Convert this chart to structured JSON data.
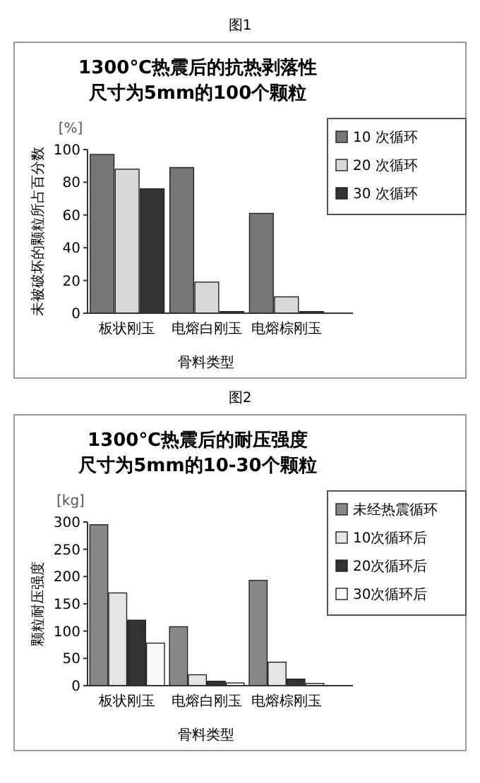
{
  "chart_data": [
    {
      "type": "bar",
      "title": "1300℃热震后的抗热剥落性",
      "subtitle": "尺寸为5mm的100个颗粒",
      "xlabel": "骨料类型",
      "ylabel": "未被破坏的颗粒所占百分数",
      "annotations": [
        "图1",
        "[%]"
      ],
      "categories": [
        "板状刚玉",
        "电熔白刚玉",
        "电熔棕刚玉"
      ],
      "series": [
        {
          "name": "10 次循环",
          "color": "#777777",
          "values": [
            97,
            89,
            61
          ]
        },
        {
          "name": "20 次循环",
          "color": "#d8d8d8",
          "values": [
            88,
            19,
            10
          ]
        },
        {
          "name": "30 次循环",
          "color": "#333333",
          "values": [
            76,
            1,
            1
          ]
        }
      ],
      "ylim": [
        0,
        100
      ],
      "yticks": [
        0,
        20,
        40,
        60,
        80,
        100
      ],
      "legend": "top right",
      "grid": false
    },
    {
      "type": "bar",
      "title": "1300℃热震后的耐压强度",
      "subtitle": "尺寸为5mm的10-30个颗粒",
      "xlabel": "骨料类型",
      "ylabel": "颗粒耐压强度",
      "annotations": [
        "图2",
        "[kg]"
      ],
      "categories": [
        "板状刚玉",
        "电熔白刚玉",
        "电熔棕刚玉"
      ],
      "series": [
        {
          "name": "未经热震循环",
          "color": "#888888",
          "values": [
            295,
            108,
            193
          ]
        },
        {
          "name": "10次循环后",
          "color": "#e6e6e6",
          "values": [
            170,
            20,
            43
          ]
        },
        {
          "name": "20次循环后",
          "color": "#333333",
          "values": [
            120,
            8,
            12
          ]
        },
        {
          "name": "30次循环后",
          "color": "#fafafa",
          "values": [
            78,
            5,
            4
          ]
        }
      ],
      "ylim": [
        0,
        300
      ],
      "yticks": [
        0,
        50,
        100,
        150,
        200,
        250,
        300
      ],
      "legend": "top right",
      "grid": false
    }
  ]
}
